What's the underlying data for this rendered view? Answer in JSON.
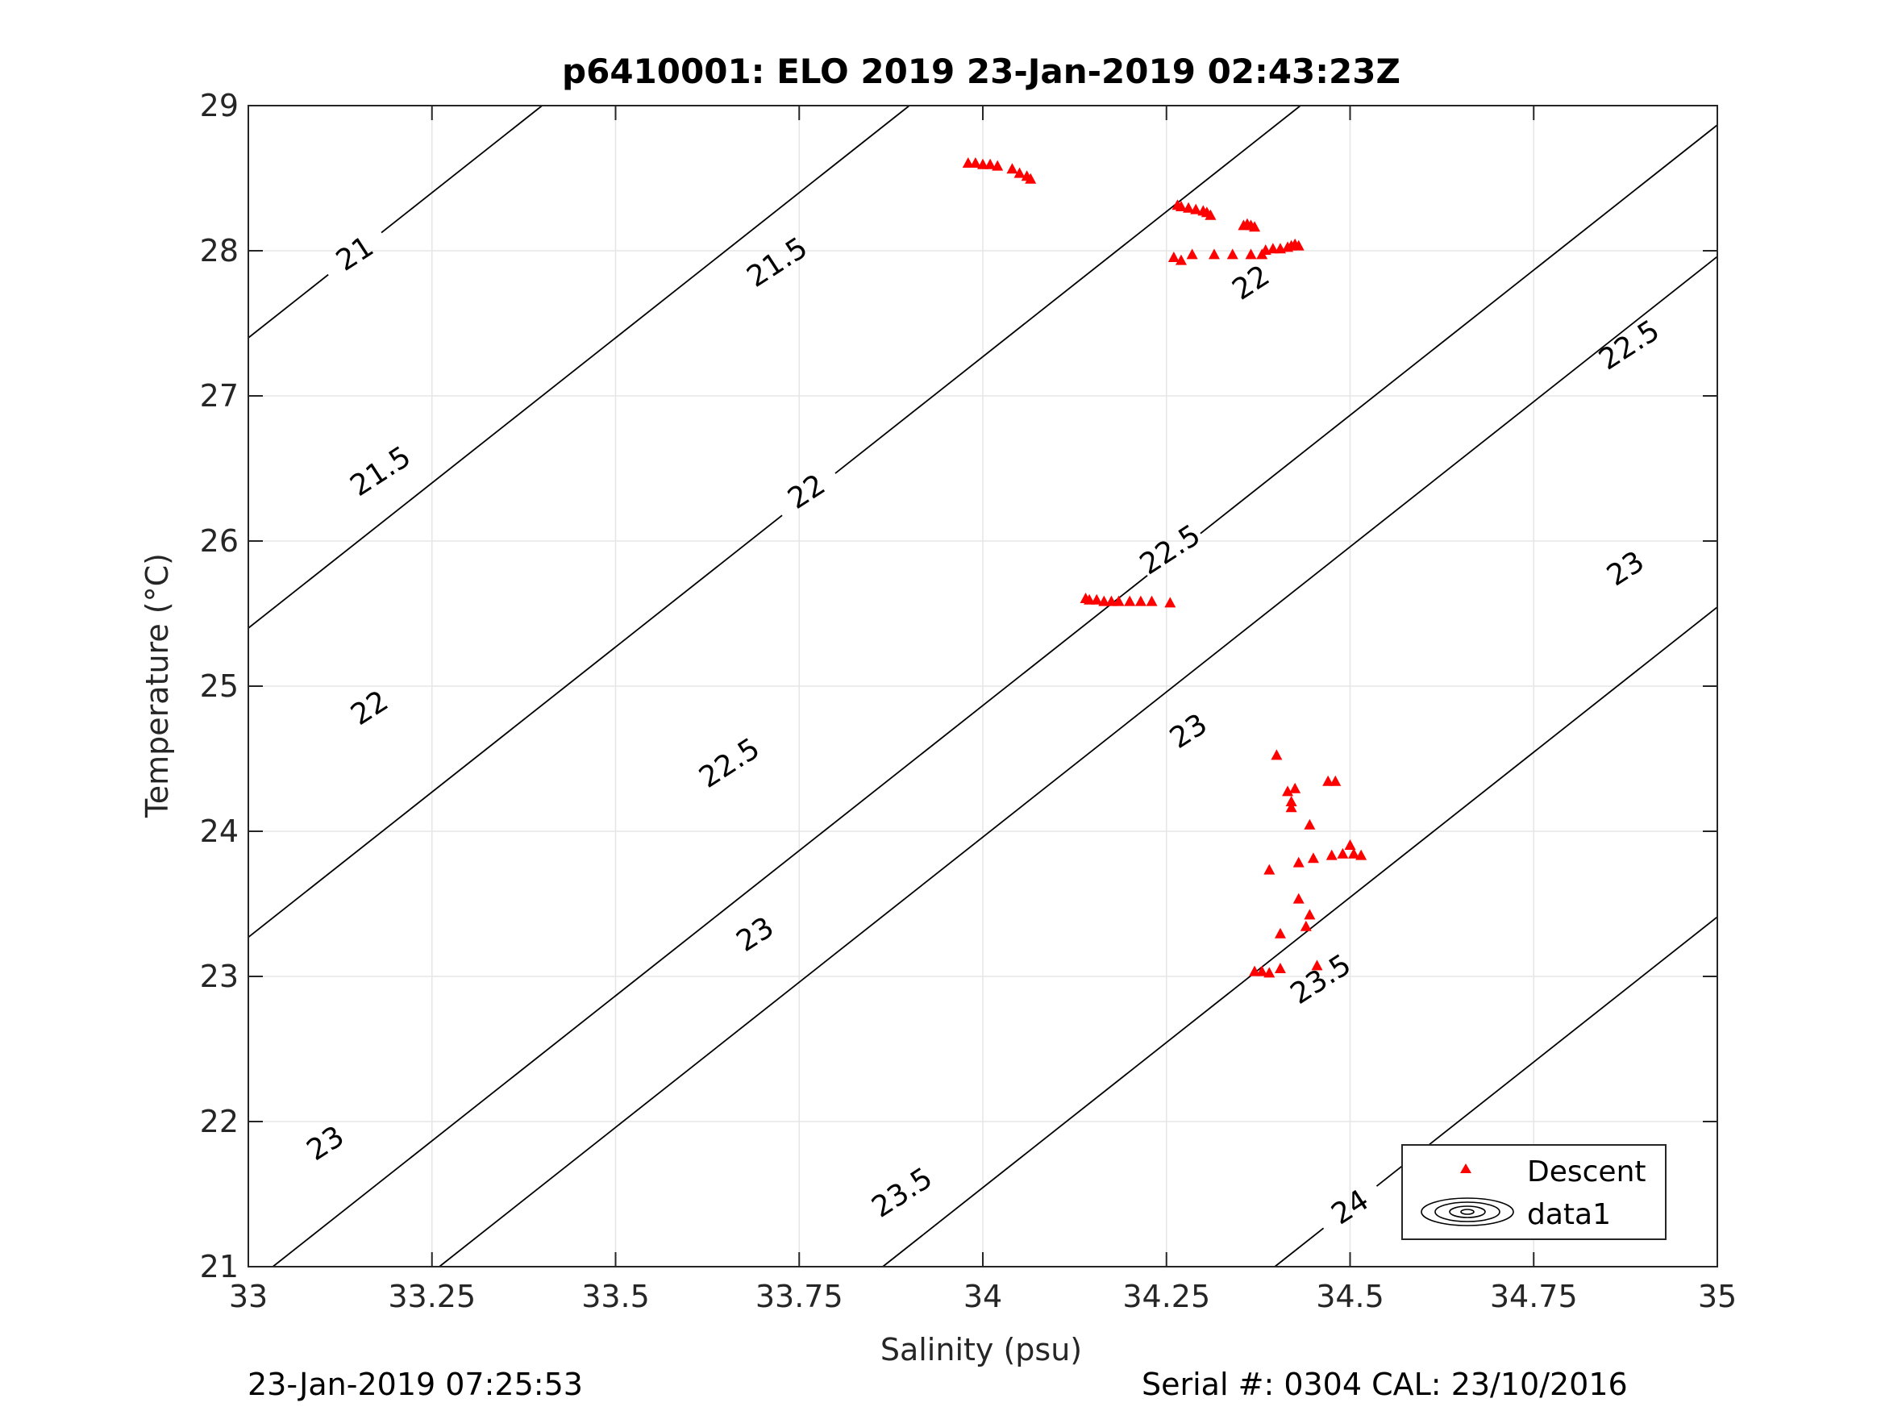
{
  "chart_data": {
    "type": "scatter",
    "title": "p6410001: ELO 2019 23-Jan-2019 02:43:23Z",
    "xlabel": "Salinity (psu)",
    "ylabel": "Temperature (°C)",
    "xlim": [
      33,
      35
    ],
    "ylim": [
      21,
      29
    ],
    "xticks": [
      "33",
      "33.25",
      "33.5",
      "33.75",
      "34",
      "34.25",
      "34.5",
      "34.75",
      "35"
    ],
    "yticks": [
      "21",
      "22",
      "23",
      "24",
      "25",
      "26",
      "27",
      "28",
      "29"
    ],
    "grid": true,
    "legend_position": "bottom-right",
    "series": [
      {
        "name": "Descent",
        "marker": "triangle",
        "color": "#ff0000",
        "points": [
          [
            33.98,
            28.6
          ],
          [
            33.99,
            28.6
          ],
          [
            34.0,
            28.59
          ],
          [
            34.01,
            28.59
          ],
          [
            34.02,
            28.58
          ],
          [
            34.04,
            28.56
          ],
          [
            34.05,
            28.53
          ],
          [
            34.06,
            28.51
          ],
          [
            34.065,
            28.49
          ],
          [
            34.265,
            28.31
          ],
          [
            34.27,
            28.3
          ],
          [
            34.28,
            28.29
          ],
          [
            34.29,
            28.28
          ],
          [
            34.3,
            28.27
          ],
          [
            34.305,
            28.26
          ],
          [
            34.31,
            28.24
          ],
          [
            34.355,
            28.17
          ],
          [
            34.36,
            28.18
          ],
          [
            34.365,
            28.17
          ],
          [
            34.37,
            28.16
          ],
          [
            34.26,
            27.95
          ],
          [
            34.27,
            27.93
          ],
          [
            34.285,
            27.97
          ],
          [
            34.315,
            27.97
          ],
          [
            34.34,
            27.97
          ],
          [
            34.365,
            27.97
          ],
          [
            34.38,
            27.97
          ],
          [
            34.385,
            28.0
          ],
          [
            34.395,
            28.01
          ],
          [
            34.405,
            28.01
          ],
          [
            34.415,
            28.02
          ],
          [
            34.42,
            28.03
          ],
          [
            34.425,
            28.04
          ],
          [
            34.43,
            28.03
          ],
          [
            34.14,
            25.6
          ],
          [
            34.145,
            25.59
          ],
          [
            34.155,
            25.59
          ],
          [
            34.165,
            25.58
          ],
          [
            34.175,
            25.58
          ],
          [
            34.185,
            25.58
          ],
          [
            34.2,
            25.58
          ],
          [
            34.215,
            25.58
          ],
          [
            34.23,
            25.58
          ],
          [
            34.255,
            25.57
          ],
          [
            34.4,
            24.52
          ],
          [
            34.47,
            24.34
          ],
          [
            34.48,
            24.34
          ],
          [
            34.415,
            24.27
          ],
          [
            34.425,
            24.29
          ],
          [
            34.42,
            24.2
          ],
          [
            34.42,
            24.16
          ],
          [
            34.445,
            24.04
          ],
          [
            34.5,
            23.9
          ],
          [
            34.49,
            23.84
          ],
          [
            34.505,
            23.84
          ],
          [
            34.515,
            23.83
          ],
          [
            34.475,
            23.83
          ],
          [
            34.45,
            23.81
          ],
          [
            34.43,
            23.78
          ],
          [
            34.39,
            23.73
          ],
          [
            34.43,
            23.53
          ],
          [
            34.445,
            23.42
          ],
          [
            34.44,
            23.34
          ],
          [
            34.405,
            23.29
          ],
          [
            34.455,
            23.07
          ],
          [
            34.37,
            23.03
          ],
          [
            34.38,
            23.03
          ],
          [
            34.39,
            23.02
          ],
          [
            34.405,
            23.05
          ]
        ]
      },
      {
        "name": "data1",
        "type": "contour",
        "color": "#000000",
        "levels": [
          21,
          21.5,
          22,
          22.5,
          23,
          23.5,
          24
        ],
        "level_labels": [
          {
            "text": "21",
            "at": [
              33.145,
              27.98
            ]
          },
          {
            "text": "21.5",
            "at": [
              33.18,
              26.48
            ]
          },
          {
            "text": "21.5",
            "at": [
              33.72,
              27.92
            ]
          },
          {
            "text": "22",
            "at": [
              33.165,
              24.85
            ]
          },
          {
            "text": "22",
            "at": [
              33.76,
              26.34
            ]
          },
          {
            "text": "22",
            "at": [
              34.365,
              27.78
            ]
          },
          {
            "text": "22.5",
            "at": [
              33.655,
              24.47
            ]
          },
          {
            "text": "22.5",
            "at": [
              34.255,
              25.94
            ]
          },
          {
            "text": "22.5",
            "at": [
              34.88,
              27.35
            ]
          },
          {
            "text": "23",
            "at": [
              33.105,
              21.85
            ]
          },
          {
            "text": "23",
            "at": [
              33.69,
              23.29
            ]
          },
          {
            "text": "23",
            "at": [
              34.28,
              24.69
            ]
          },
          {
            "text": "23",
            "at": [
              34.875,
              25.81
            ]
          },
          {
            "text": "23.5",
            "at": [
              33.89,
              21.51
            ]
          },
          {
            "text": "23.5",
            "at": [
              34.46,
              22.98
            ]
          },
          {
            "text": "24",
            "at": [
              34.5,
              21.41
            ]
          }
        ]
      }
    ],
    "legend": [
      {
        "label": "Descent",
        "symbol": "red-triangle"
      },
      {
        "label": "data1",
        "symbol": "contour-ellipses"
      }
    ]
  },
  "footer": {
    "left": "23-Jan-2019 07:25:53",
    "right": "Serial #: 0304  CAL: 23/10/2016"
  }
}
